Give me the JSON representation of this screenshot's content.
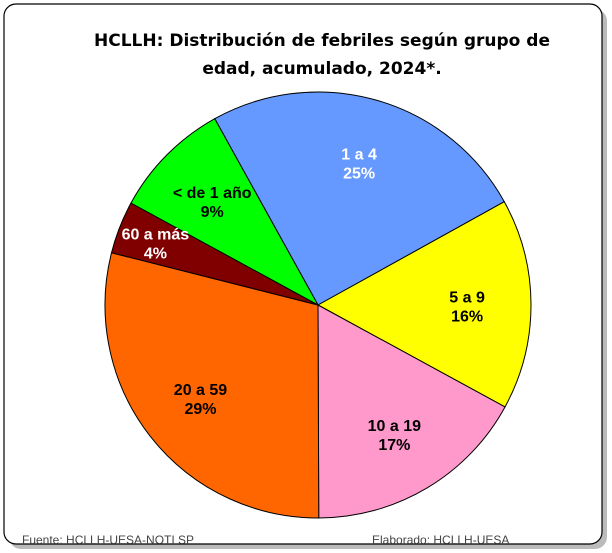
{
  "chart_data": {
    "type": "pie",
    "title": [
      "HCLLH: Distribución de febriles según grupo de",
      "edad, acumulado, 2024*."
    ],
    "categories": [
      "1 a 4",
      "5 a 9",
      "10 a 19",
      "20 a 59",
      "60 a más",
      "< de 1 año"
    ],
    "values": [
      25,
      16,
      17,
      29,
      4,
      9
    ],
    "value_labels": [
      "25%",
      "16%",
      "17%",
      "29%",
      "4%",
      "9%"
    ],
    "colors": [
      "#6699ff",
      "#ffff00",
      "#ff99cc",
      "#ff6600",
      "#800000",
      "#00ff00"
    ],
    "label_colors": [
      "#ffffff",
      "#000000",
      "#000000",
      "#000000",
      "#ffffff",
      "#000000"
    ]
  },
  "footer": {
    "source": "Fuente: HCLLH-UESA-NOTI SP",
    "credit": "Elaborado: HCLLH-UESA"
  }
}
